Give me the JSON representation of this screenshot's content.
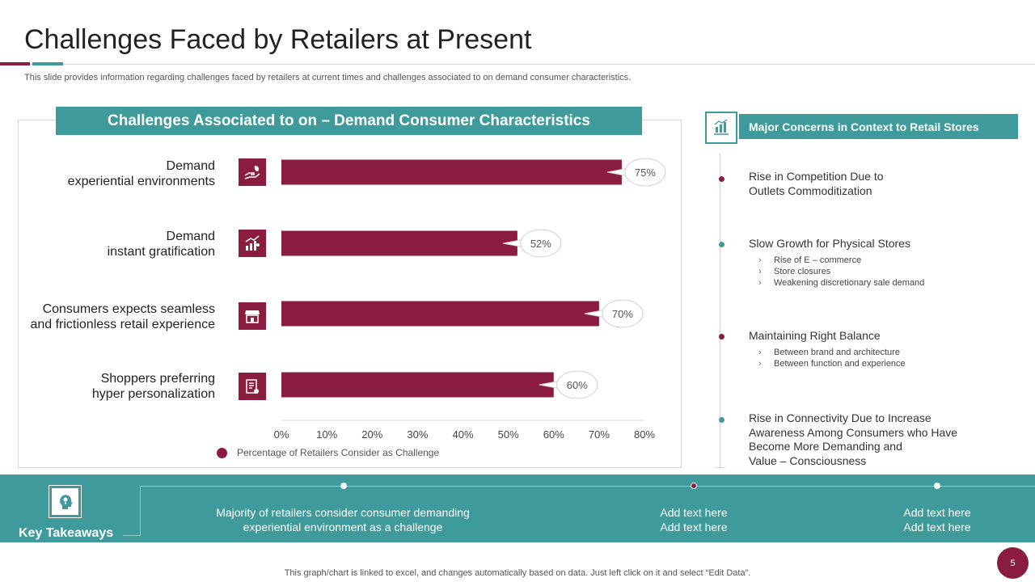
{
  "slide": {
    "title": "Challenges Faced by Retailers at Present",
    "subtitle": "This slide provides information regarding challenges faced by retailers at current times and challenges associated to on demand consumer characteristics.",
    "page_number": "5",
    "footer_note": "This graph/chart is linked to excel,  and changes automatically based on data. Just left click on it and select “Edit Data”."
  },
  "chart_panel": {
    "header": "Challenges Associated to on – Demand Consumer Characteristics",
    "icons": [
      "hand-with-leaf-icon",
      "growth-chart-icon",
      "storefront-icon",
      "checklist-icon"
    ]
  },
  "chart_data": {
    "type": "bar",
    "orientation": "horizontal",
    "categories": [
      "Demand\nexperiential environments",
      "Demand\ninstant gratification",
      "Consumers expects seamless\nand frictionless retail experience",
      "Shoppers preferring\nhyper personalization"
    ],
    "series": [
      {
        "name": "Percentage of Retailers Consider as Challenge",
        "values": [
          75,
          52,
          70,
          60
        ]
      }
    ],
    "data_labels": [
      "75%",
      "52%",
      "70%",
      "60%"
    ],
    "x_ticks": [
      "0%",
      "10%",
      "20%",
      "30%",
      "40%",
      "50%",
      "60%",
      "70%",
      "80%"
    ],
    "xlim": [
      0,
      80
    ],
    "grid": false,
    "legend_position": "bottom",
    "bar_color": "#8a1c3f"
  },
  "concerns": {
    "header": "Major Concerns in Context to Retail Stores",
    "icon": "bar-chart-growth-icon",
    "items": [
      {
        "title": "Rise in Competition Due to\nOutlets Commoditization",
        "bullets": []
      },
      {
        "title": "Slow Growth for Physical Stores",
        "bullets": [
          "Rise of E – commerce",
          "Store closures",
          "Weakening discretionary sale demand"
        ]
      },
      {
        "title": "Maintaining  Right Balance",
        "bullets": [
          "Between brand and architecture",
          "Between function and experience"
        ]
      },
      {
        "title": "Rise in Connectivity Due to Increase\nAwareness Among Consumers who Have\nBecome More Demanding and\nValue – Consciousness",
        "bullets": []
      }
    ]
  },
  "takeaways": {
    "label": "Key Takeaways",
    "icon": "lightbulb-head-icon",
    "items": [
      "Majority  of retailers consider consumer demanding\nexperiential environment as a challenge",
      "Add text here\nAdd text here",
      "Add text here\nAdd text here"
    ]
  },
  "colors": {
    "teal": "#3f9a9c",
    "maroon": "#8a1c3f"
  }
}
